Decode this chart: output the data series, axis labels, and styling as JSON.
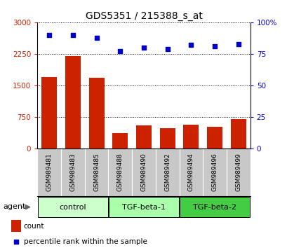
{
  "title": "GDS5351 / 215388_s_at",
  "samples": [
    "GSM989481",
    "GSM989483",
    "GSM989485",
    "GSM989488",
    "GSM989490",
    "GSM989492",
    "GSM989494",
    "GSM989496",
    "GSM989499"
  ],
  "counts": [
    1700,
    2200,
    1680,
    370,
    550,
    490,
    570,
    530,
    710
  ],
  "percentiles": [
    90,
    90,
    88,
    77,
    80,
    79,
    82,
    81,
    83
  ],
  "bar_color": "#cc2200",
  "dot_color": "#0000cc",
  "ylim_left": [
    0,
    3000
  ],
  "ylim_right": [
    0,
    100
  ],
  "yticks_left": [
    0,
    750,
    1500,
    2250,
    3000
  ],
  "yticks_right": [
    0,
    25,
    50,
    75,
    100
  ],
  "ytick_labels_left": [
    "0",
    "750",
    "1500",
    "2250",
    "3000"
  ],
  "ytick_labels_right": [
    "0",
    "25",
    "50",
    "75",
    "100%"
  ],
  "groups": [
    {
      "label": "control",
      "indices": [
        0,
        1,
        2
      ],
      "color": "#ccffcc"
    },
    {
      "label": "TGF-beta-1",
      "indices": [
        3,
        4,
        5
      ],
      "color": "#aaffaa"
    },
    {
      "label": "TGF-beta-2",
      "indices": [
        6,
        7,
        8
      ],
      "color": "#44cc44"
    }
  ],
  "agent_label": "agent",
  "legend_count_label": "count",
  "legend_percentile_label": "percentile rank within the sample",
  "tick_area_bg": "#c8c8c8",
  "fig_bg": "#ffffff"
}
